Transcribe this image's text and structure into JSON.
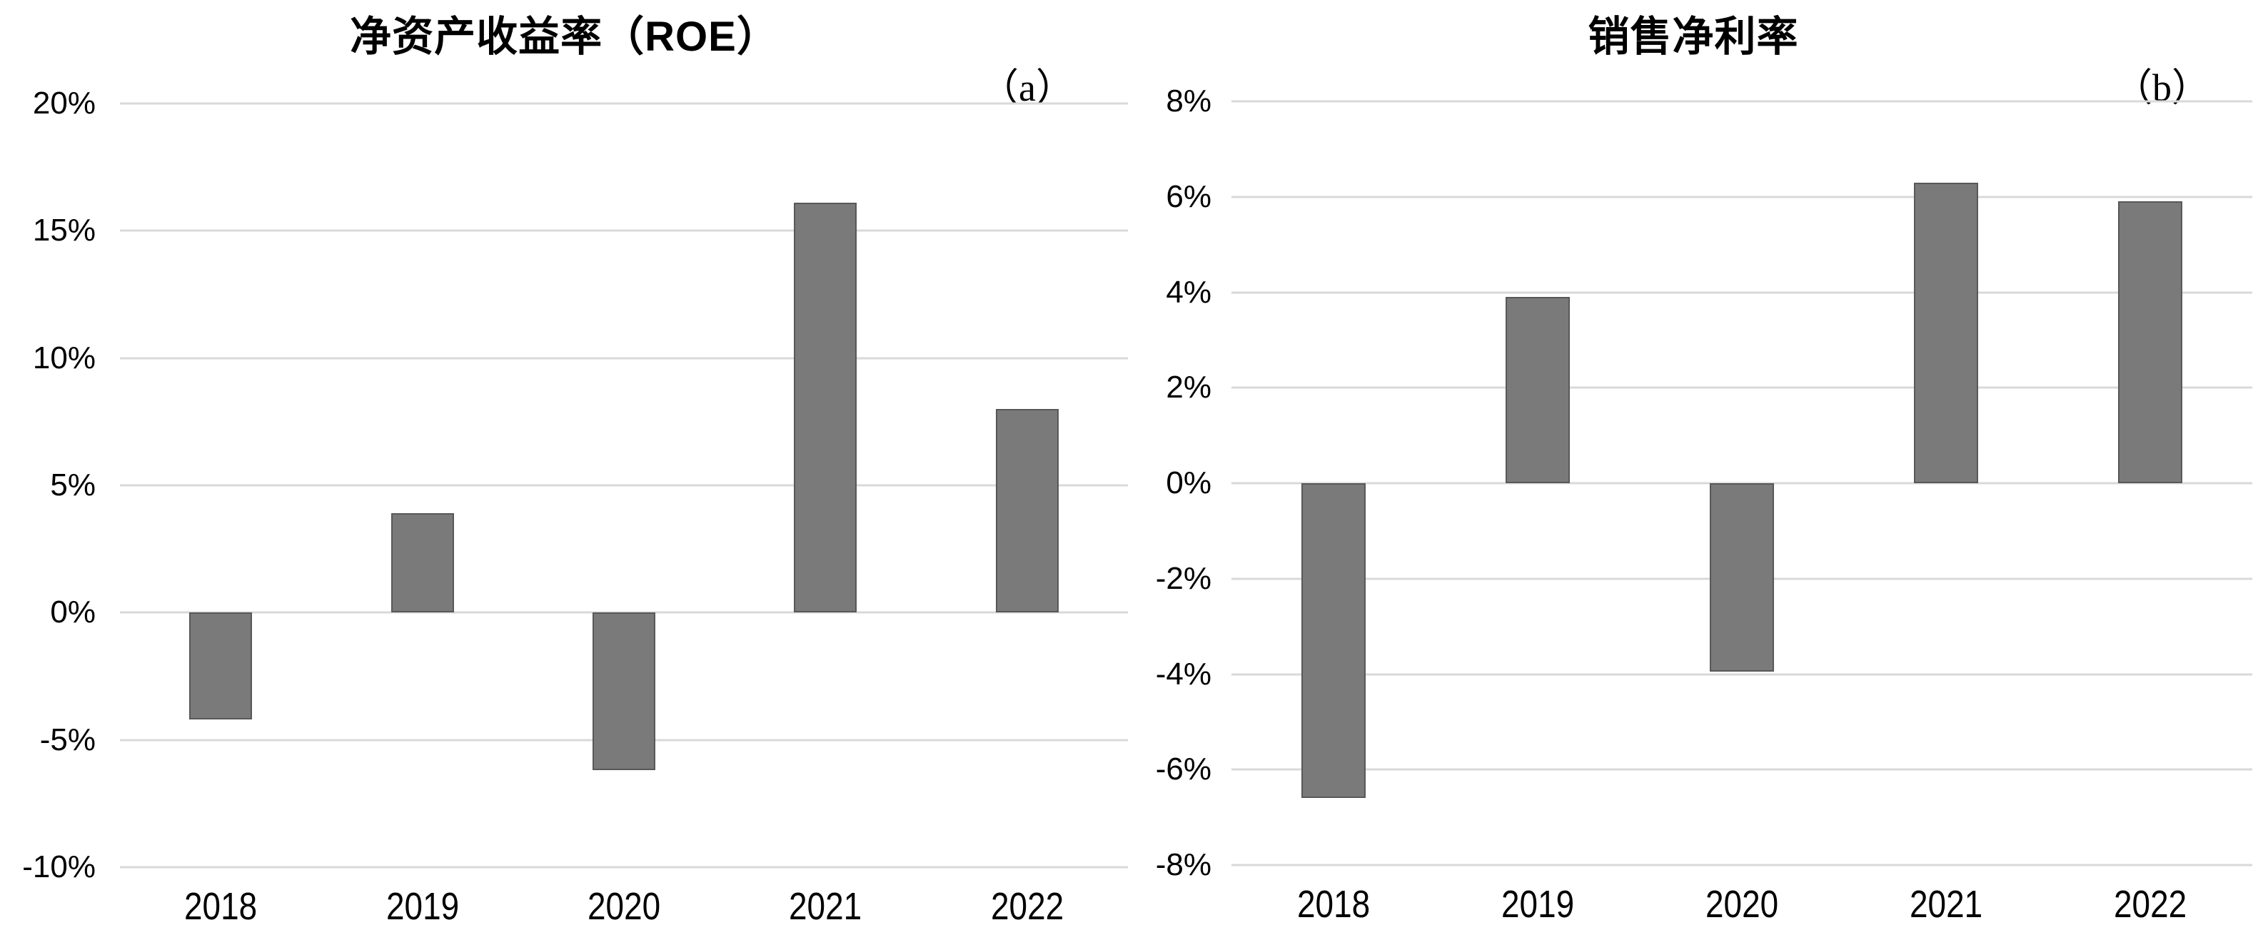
{
  "figure": {
    "background_color": "#ffffff",
    "bar_color": "#7a7a7a",
    "bar_border_color": "#585858",
    "gridline_color": "#d9d9d9",
    "text_color": "#000000"
  },
  "chart_data": [
    {
      "type": "bar",
      "title": "净资产收益率（ROE）",
      "panel_label": "（a）",
      "categories": [
        "2018",
        "2019",
        "2020",
        "2021",
        "2022"
      ],
      "values": [
        -4.2,
        3.9,
        -6.2,
        16.1,
        8.0
      ],
      "unit": "%",
      "xlabel": "",
      "ylabel": "",
      "ylim": [
        -10,
        20
      ],
      "ytick_labels": [
        "20%",
        "15%",
        "10%",
        "5%",
        "0%",
        "-5%",
        "-10%"
      ],
      "ytick_values": [
        20,
        15,
        10,
        5,
        0,
        -5,
        -10
      ],
      "grid": "horizontal",
      "legend": "none"
    },
    {
      "type": "bar",
      "title": "销售净利率",
      "panel_label": "（b）",
      "categories": [
        "2018",
        "2019",
        "2020",
        "2021",
        "2022"
      ],
      "values": [
        -6.6,
        3.9,
        -3.95,
        6.3,
        5.9
      ],
      "unit": "%",
      "xlabel": "",
      "ylabel": "",
      "ylim": [
        -8,
        8
      ],
      "ytick_labels": [
        "8%",
        "6%",
        "4%",
        "2%",
        "0%",
        "-2%",
        "-4%",
        "-6%",
        "-8%"
      ],
      "ytick_values": [
        8,
        6,
        4,
        2,
        0,
        -2,
        -4,
        -6,
        -8
      ],
      "grid": "horizontal",
      "legend": "none"
    }
  ]
}
